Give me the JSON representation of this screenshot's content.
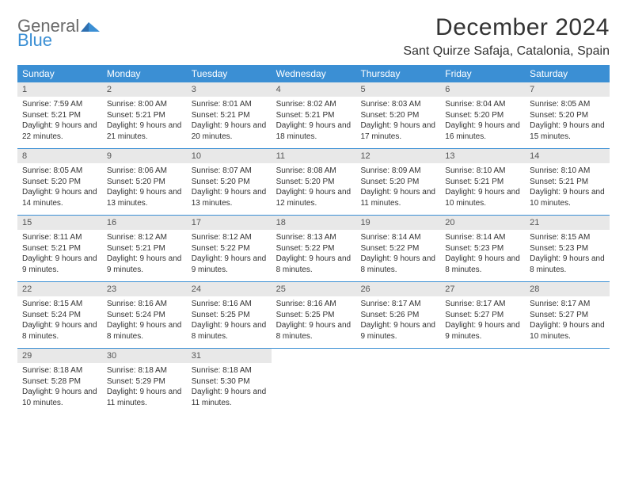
{
  "logo": {
    "general": "General",
    "blue": "Blue"
  },
  "title": "December 2024",
  "location": "Sant Quirze Safaja, Catalonia, Spain",
  "colors": {
    "header_bg": "#3b8fd4",
    "header_text": "#ffffff",
    "daynum_bg": "#e8e8e8",
    "week_border": "#3b8fd4",
    "body_text": "#333333",
    "logo_gray": "#6a6a6a",
    "logo_blue": "#3b8fd4"
  },
  "weekdays": [
    "Sunday",
    "Monday",
    "Tuesday",
    "Wednesday",
    "Thursday",
    "Friday",
    "Saturday"
  ],
  "weeks": [
    [
      {
        "n": "1",
        "sr": "Sunrise: 7:59 AM",
        "ss": "Sunset: 5:21 PM",
        "dl": "Daylight: 9 hours and 22 minutes."
      },
      {
        "n": "2",
        "sr": "Sunrise: 8:00 AM",
        "ss": "Sunset: 5:21 PM",
        "dl": "Daylight: 9 hours and 21 minutes."
      },
      {
        "n": "3",
        "sr": "Sunrise: 8:01 AM",
        "ss": "Sunset: 5:21 PM",
        "dl": "Daylight: 9 hours and 20 minutes."
      },
      {
        "n": "4",
        "sr": "Sunrise: 8:02 AM",
        "ss": "Sunset: 5:21 PM",
        "dl": "Daylight: 9 hours and 18 minutes."
      },
      {
        "n": "5",
        "sr": "Sunrise: 8:03 AM",
        "ss": "Sunset: 5:20 PM",
        "dl": "Daylight: 9 hours and 17 minutes."
      },
      {
        "n": "6",
        "sr": "Sunrise: 8:04 AM",
        "ss": "Sunset: 5:20 PM",
        "dl": "Daylight: 9 hours and 16 minutes."
      },
      {
        "n": "7",
        "sr": "Sunrise: 8:05 AM",
        "ss": "Sunset: 5:20 PM",
        "dl": "Daylight: 9 hours and 15 minutes."
      }
    ],
    [
      {
        "n": "8",
        "sr": "Sunrise: 8:05 AM",
        "ss": "Sunset: 5:20 PM",
        "dl": "Daylight: 9 hours and 14 minutes."
      },
      {
        "n": "9",
        "sr": "Sunrise: 8:06 AM",
        "ss": "Sunset: 5:20 PM",
        "dl": "Daylight: 9 hours and 13 minutes."
      },
      {
        "n": "10",
        "sr": "Sunrise: 8:07 AM",
        "ss": "Sunset: 5:20 PM",
        "dl": "Daylight: 9 hours and 13 minutes."
      },
      {
        "n": "11",
        "sr": "Sunrise: 8:08 AM",
        "ss": "Sunset: 5:20 PM",
        "dl": "Daylight: 9 hours and 12 minutes."
      },
      {
        "n": "12",
        "sr": "Sunrise: 8:09 AM",
        "ss": "Sunset: 5:20 PM",
        "dl": "Daylight: 9 hours and 11 minutes."
      },
      {
        "n": "13",
        "sr": "Sunrise: 8:10 AM",
        "ss": "Sunset: 5:21 PM",
        "dl": "Daylight: 9 hours and 10 minutes."
      },
      {
        "n": "14",
        "sr": "Sunrise: 8:10 AM",
        "ss": "Sunset: 5:21 PM",
        "dl": "Daylight: 9 hours and 10 minutes."
      }
    ],
    [
      {
        "n": "15",
        "sr": "Sunrise: 8:11 AM",
        "ss": "Sunset: 5:21 PM",
        "dl": "Daylight: 9 hours and 9 minutes."
      },
      {
        "n": "16",
        "sr": "Sunrise: 8:12 AM",
        "ss": "Sunset: 5:21 PM",
        "dl": "Daylight: 9 hours and 9 minutes."
      },
      {
        "n": "17",
        "sr": "Sunrise: 8:12 AM",
        "ss": "Sunset: 5:22 PM",
        "dl": "Daylight: 9 hours and 9 minutes."
      },
      {
        "n": "18",
        "sr": "Sunrise: 8:13 AM",
        "ss": "Sunset: 5:22 PM",
        "dl": "Daylight: 9 hours and 8 minutes."
      },
      {
        "n": "19",
        "sr": "Sunrise: 8:14 AM",
        "ss": "Sunset: 5:22 PM",
        "dl": "Daylight: 9 hours and 8 minutes."
      },
      {
        "n": "20",
        "sr": "Sunrise: 8:14 AM",
        "ss": "Sunset: 5:23 PM",
        "dl": "Daylight: 9 hours and 8 minutes."
      },
      {
        "n": "21",
        "sr": "Sunrise: 8:15 AM",
        "ss": "Sunset: 5:23 PM",
        "dl": "Daylight: 9 hours and 8 minutes."
      }
    ],
    [
      {
        "n": "22",
        "sr": "Sunrise: 8:15 AM",
        "ss": "Sunset: 5:24 PM",
        "dl": "Daylight: 9 hours and 8 minutes."
      },
      {
        "n": "23",
        "sr": "Sunrise: 8:16 AM",
        "ss": "Sunset: 5:24 PM",
        "dl": "Daylight: 9 hours and 8 minutes."
      },
      {
        "n": "24",
        "sr": "Sunrise: 8:16 AM",
        "ss": "Sunset: 5:25 PM",
        "dl": "Daylight: 9 hours and 8 minutes."
      },
      {
        "n": "25",
        "sr": "Sunrise: 8:16 AM",
        "ss": "Sunset: 5:25 PM",
        "dl": "Daylight: 9 hours and 8 minutes."
      },
      {
        "n": "26",
        "sr": "Sunrise: 8:17 AM",
        "ss": "Sunset: 5:26 PM",
        "dl": "Daylight: 9 hours and 9 minutes."
      },
      {
        "n": "27",
        "sr": "Sunrise: 8:17 AM",
        "ss": "Sunset: 5:27 PM",
        "dl": "Daylight: 9 hours and 9 minutes."
      },
      {
        "n": "28",
        "sr": "Sunrise: 8:17 AM",
        "ss": "Sunset: 5:27 PM",
        "dl": "Daylight: 9 hours and 10 minutes."
      }
    ],
    [
      {
        "n": "29",
        "sr": "Sunrise: 8:18 AM",
        "ss": "Sunset: 5:28 PM",
        "dl": "Daylight: 9 hours and 10 minutes."
      },
      {
        "n": "30",
        "sr": "Sunrise: 8:18 AM",
        "ss": "Sunset: 5:29 PM",
        "dl": "Daylight: 9 hours and 11 minutes."
      },
      {
        "n": "31",
        "sr": "Sunrise: 8:18 AM",
        "ss": "Sunset: 5:30 PM",
        "dl": "Daylight: 9 hours and 11 minutes."
      },
      null,
      null,
      null,
      null
    ]
  ]
}
